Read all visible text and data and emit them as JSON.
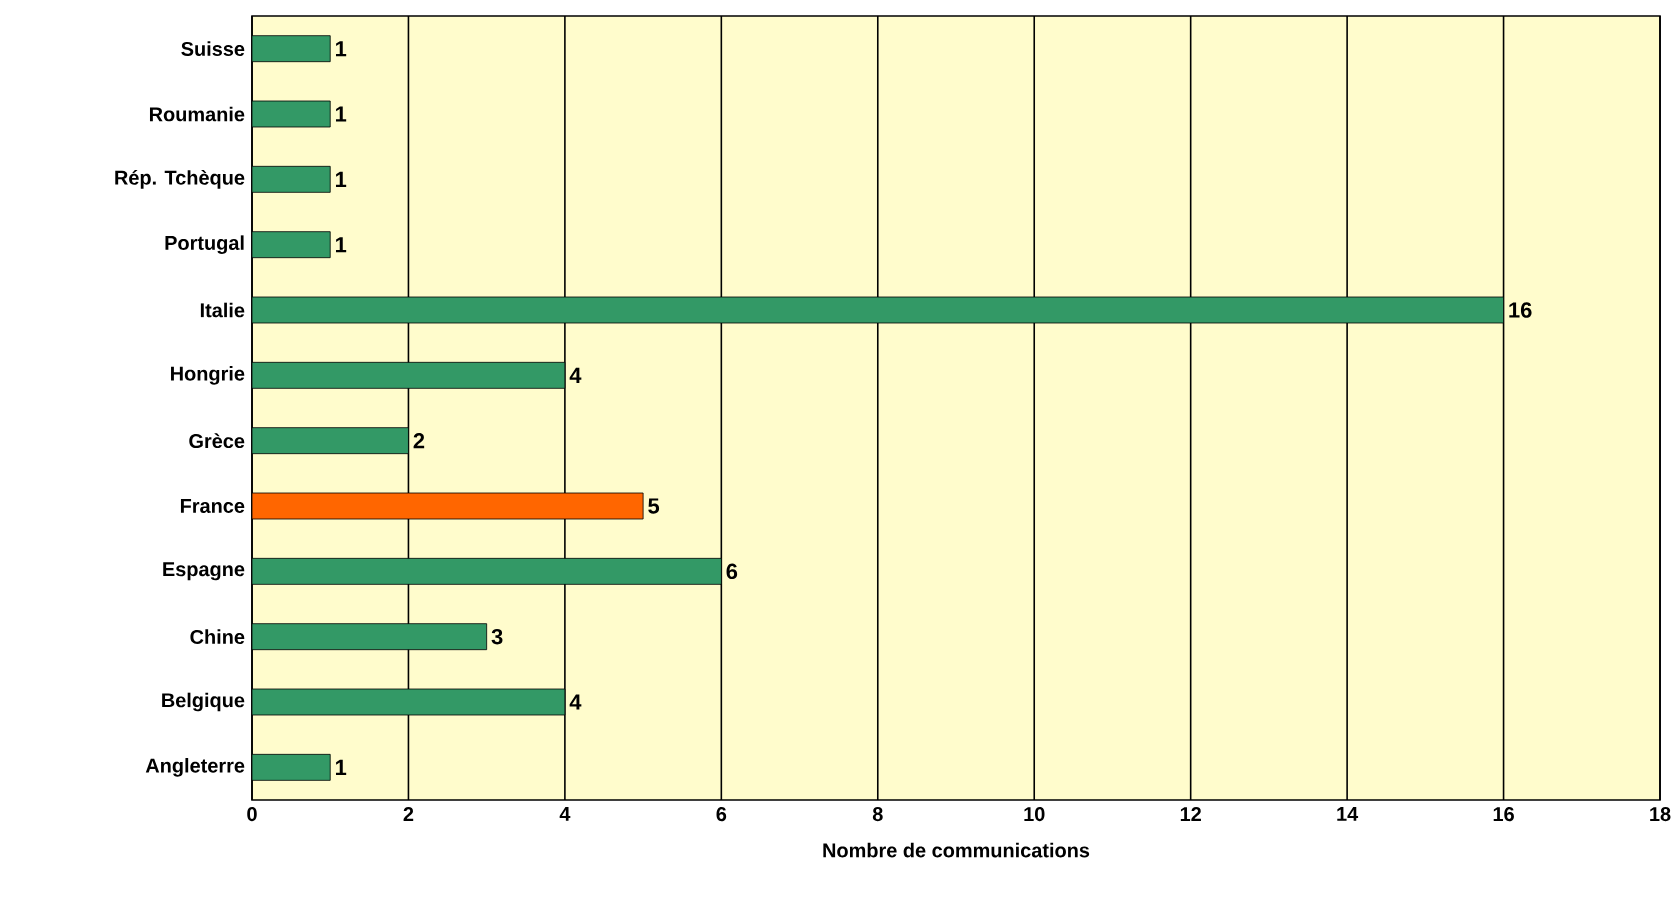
{
  "chart_data": {
    "type": "bar",
    "orientation": "horizontal",
    "xlabel": "Nombre de communications",
    "categories": [
      "Suisse",
      "Roumanie",
      "Rép. Tchèque",
      "Portugal",
      "Italie",
      "Hongrie",
      "Grèce",
      "France",
      "Espagne",
      "Chine",
      "Belgique",
      "Angleterre"
    ],
    "values": [
      1,
      1,
      1,
      1,
      16,
      4,
      2,
      5,
      6,
      3,
      4,
      1
    ],
    "colors": [
      "#339966",
      "#339966",
      "#339966",
      "#339966",
      "#339966",
      "#339966",
      "#339966",
      "#ff6600",
      "#339966",
      "#339966",
      "#339966",
      "#339966"
    ],
    "xlim": [
      0,
      18
    ],
    "xticks": [
      0,
      2,
      4,
      6,
      8,
      10,
      12,
      14,
      16,
      18
    ],
    "grid": "x",
    "data_labels": true
  }
}
